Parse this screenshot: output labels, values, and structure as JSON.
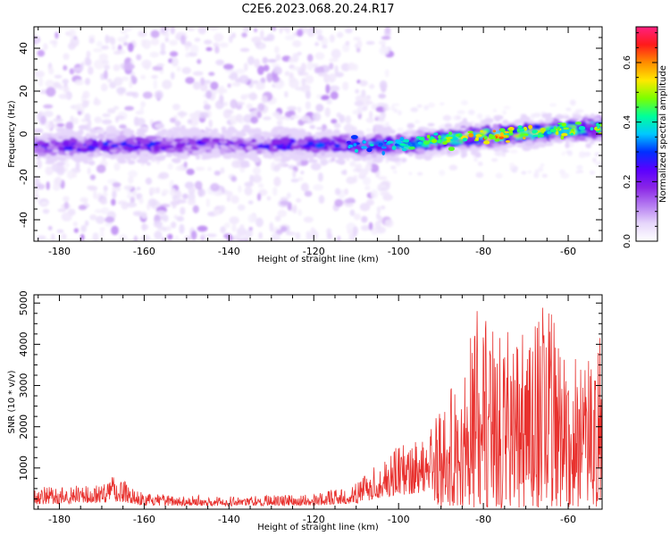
{
  "title": "C2E6.2023.068.20.24.R17",
  "chart_data": [
    {
      "type": "heatmap",
      "xlabel": "Height of straight line (km)",
      "ylabel": "Frequency (Hz)",
      "xlim": [
        -186,
        -52
      ],
      "ylim": [
        -50,
        50
      ],
      "xticks": [
        -180,
        -160,
        -140,
        -120,
        -100,
        -80,
        -60
      ],
      "yticks": [
        -40,
        -20,
        0,
        20,
        40
      ],
      "colorbar": {
        "label": "Normalized spectral amplitude",
        "range": [
          0.0,
          0.72
        ],
        "ticks": [
          0.0,
          0.2,
          0.4,
          0.6
        ],
        "colormap": [
          "#ffffff",
          "#e6d6fb",
          "#b57cf1",
          "#8a25e6",
          "#5a00ff",
          "#0030ff",
          "#00c8ff",
          "#00ff9a",
          "#7cff00",
          "#ffe800",
          "#ff8c00",
          "#ff1a1a",
          "#ff2080"
        ]
      },
      "band": {
        "description_free": true,
        "center_freq_at": [
          [
            -186,
            -6
          ],
          [
            -150,
            -5
          ],
          [
            -120,
            -5
          ],
          [
            -100,
            -5
          ],
          [
            -80,
            -1
          ],
          [
            -60,
            2
          ],
          [
            -52,
            3
          ]
        ],
        "peak_amplitude_at": [
          [
            -186,
            0.25
          ],
          [
            -166,
            0.3
          ],
          [
            -140,
            0.22
          ],
          [
            -110,
            0.35
          ],
          [
            -100,
            0.4
          ],
          [
            -85,
            0.5
          ],
          [
            -80,
            0.6
          ],
          [
            -65,
            0.5
          ],
          [
            -53,
            0.5
          ]
        ]
      },
      "scatter_noise_region_km": [
        -186,
        -110
      ]
    },
    {
      "type": "line",
      "xlabel": "Height of straight line (km)",
      "ylabel": "SNR (10 * v/v)",
      "xlim": [
        -186,
        -52
      ],
      "ylim": [
        0,
        5200
      ],
      "xticks": [
        -180,
        -160,
        -140,
        -120,
        -100,
        -80,
        -60
      ],
      "yticks": [
        1000,
        2000,
        3000,
        4000,
        5000
      ],
      "color": "#e8312e",
      "envelope": [
        [
          -186,
          500
        ],
        [
          -172,
          600
        ],
        [
          -166,
          850
        ],
        [
          -160,
          350
        ],
        [
          -140,
          300
        ],
        [
          -120,
          350
        ],
        [
          -110,
          600
        ],
        [
          -104,
          1300
        ],
        [
          -98,
          1600
        ],
        [
          -92,
          2200
        ],
        [
          -88,
          2900
        ],
        [
          -84,
          3500
        ],
        [
          -82,
          4900
        ],
        [
          -78,
          4700
        ],
        [
          -72,
          4000
        ],
        [
          -66,
          5200
        ],
        [
          -60,
          3800
        ],
        [
          -56,
          3500
        ],
        [
          -52,
          4300
        ]
      ]
    }
  ]
}
